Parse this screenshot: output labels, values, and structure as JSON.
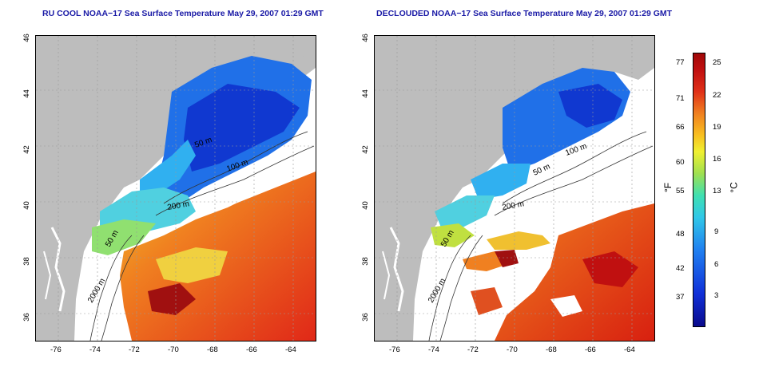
{
  "titles": {
    "left": "RU COOL NOAA−17 Sea Surface Temperature May 29, 2007 01:29 GMT",
    "right": "DECLOUDED NOAA−17 Sea Surface Temperature May 29, 2007 01:29 GMT"
  },
  "axes": {
    "lat_ticks": [
      "46",
      "44",
      "42",
      "40",
      "38",
      "36"
    ],
    "lon_ticks": [
      "-76",
      "-74",
      "-72",
      "-70",
      "-68",
      "-66",
      "-64"
    ]
  },
  "contour_labels": {
    "left": [
      "50 m",
      "100 m",
      "200 m",
      "50 m",
      "2000 m"
    ],
    "right": [
      "50 m",
      "100 m",
      "200 m",
      "50 m",
      "2000 m"
    ]
  },
  "colorbar": {
    "fahrenheit_ticks": [
      "77",
      "71",
      "66",
      "60",
      "55",
      "48",
      "42",
      "37"
    ],
    "celsius_ticks": [
      "25",
      "22",
      "19",
      "16",
      "13",
      "9",
      "6",
      "3"
    ],
    "unit_f": "°F",
    "unit_c": "°C"
  },
  "colors": {
    "land": "#bdbdbd",
    "cold": "#1030d0",
    "cool": "#30a0f0",
    "mild": "#40d8c0",
    "warm": "#f0e030",
    "hot": "#e03018",
    "title": "#1a1aa6"
  }
}
